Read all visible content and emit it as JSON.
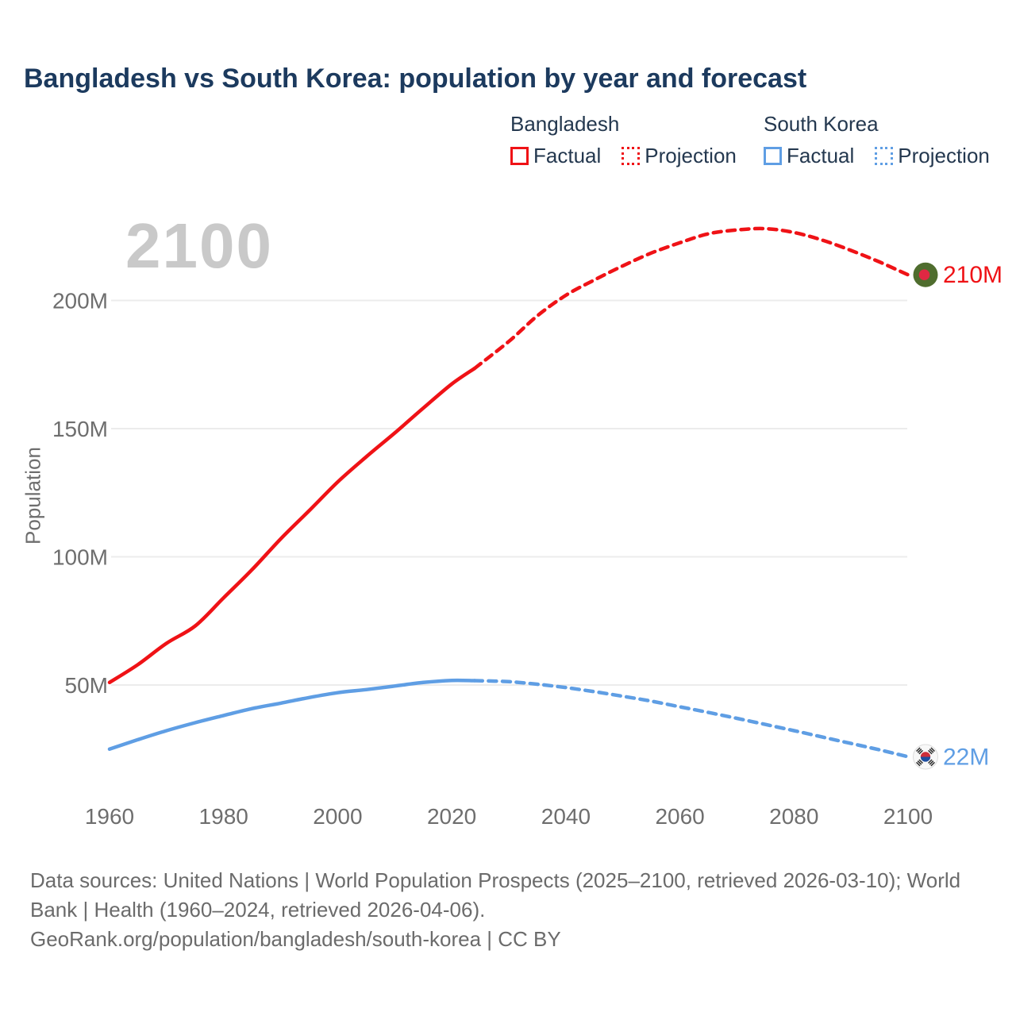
{
  "header": {
    "title": "Bangladesh vs South Korea: population by year and forecast"
  },
  "legend": {
    "groups": [
      {
        "name": "Bangladesh",
        "color": "#ef1216",
        "items": [
          {
            "label": "Factual",
            "style": "solid"
          },
          {
            "label": "Projection",
            "style": "dotted"
          }
        ]
      },
      {
        "name": "South Korea",
        "color": "#5f9ee4",
        "items": [
          {
            "label": "Factual",
            "style": "solid"
          },
          {
            "label": "Projection",
            "style": "dotted"
          }
        ]
      }
    ]
  },
  "watermark": "2100",
  "chart_data": {
    "type": "line",
    "title": "Bangladesh vs South Korea: population by year and forecast",
    "ylabel": "Population",
    "units": "millions",
    "xlim": [
      1960,
      2100
    ],
    "ylim": [
      0,
      240
    ],
    "grid": "horizontal-only",
    "legend_position": "top-right",
    "x_ticks": [
      1960,
      1980,
      2000,
      2020,
      2040,
      2060,
      2080,
      2100
    ],
    "y_ticks": [
      {
        "value": 50,
        "label": "50M"
      },
      {
        "value": 100,
        "label": "100M"
      },
      {
        "value": 150,
        "label": "150M"
      },
      {
        "value": 200,
        "label": "200M"
      }
    ],
    "series": [
      {
        "name": "Bangladesh Factual",
        "style": "solid",
        "color": "#ef1216",
        "points": [
          [
            1960,
            51
          ],
          [
            1965,
            58
          ],
          [
            1970,
            66.3
          ],
          [
            1975,
            73
          ],
          [
            1980,
            84
          ],
          [
            1985,
            95
          ],
          [
            1990,
            107
          ],
          [
            1995,
            118
          ],
          [
            2000,
            129.2
          ],
          [
            2005,
            139
          ],
          [
            2010,
            148.3
          ],
          [
            2015,
            158
          ],
          [
            2020,
            167.4
          ],
          [
            2024,
            173.5
          ]
        ]
      },
      {
        "name": "Bangladesh Projection",
        "style": "dotted",
        "color": "#ef1216",
        "points": [
          [
            2024,
            173.5
          ],
          [
            2030,
            184
          ],
          [
            2035,
            194
          ],
          [
            2040,
            202
          ],
          [
            2045,
            208
          ],
          [
            2050,
            213.5
          ],
          [
            2055,
            218.5
          ],
          [
            2060,
            222.5
          ],
          [
            2065,
            226
          ],
          [
            2070,
            227.5
          ],
          [
            2075,
            228
          ],
          [
            2080,
            226.5
          ],
          [
            2085,
            223.5
          ],
          [
            2090,
            219.5
          ],
          [
            2095,
            215
          ],
          [
            2100,
            210
          ]
        ]
      },
      {
        "name": "South Korea Factual",
        "style": "solid",
        "color": "#5f9ee4",
        "points": [
          [
            1960,
            25
          ],
          [
            1965,
            28.7
          ],
          [
            1970,
            32.2
          ],
          [
            1975,
            35.3
          ],
          [
            1980,
            38.1
          ],
          [
            1985,
            40.8
          ],
          [
            1990,
            42.9
          ],
          [
            1995,
            45.1
          ],
          [
            2000,
            47
          ],
          [
            2005,
            48.2
          ],
          [
            2010,
            49.6
          ],
          [
            2015,
            51
          ],
          [
            2020,
            51.8
          ],
          [
            2024,
            51.7
          ]
        ]
      },
      {
        "name": "South Korea Projection",
        "style": "dotted",
        "color": "#5f9ee4",
        "points": [
          [
            2024,
            51.7
          ],
          [
            2030,
            51.3
          ],
          [
            2035,
            50.3
          ],
          [
            2040,
            49
          ],
          [
            2045,
            47.4
          ],
          [
            2050,
            45.6
          ],
          [
            2055,
            43.7
          ],
          [
            2060,
            41.5
          ],
          [
            2065,
            39.3
          ],
          [
            2070,
            37
          ],
          [
            2075,
            34.6
          ],
          [
            2080,
            32.2
          ],
          [
            2085,
            29.7
          ],
          [
            2090,
            27.2
          ],
          [
            2095,
            24.7
          ],
          [
            2100,
            22
          ]
        ]
      }
    ],
    "end_markers": [
      {
        "country": "Bangladesh",
        "flag": "bangladesh",
        "label": "210M",
        "value": 210,
        "color": "#ef1216"
      },
      {
        "country": "South Korea",
        "flag": "south-korea",
        "label": "22M",
        "value": 22,
        "color": "#5f9ee4"
      }
    ]
  },
  "icons": {
    "bangladesh_flag": {
      "field": "#4f6d2e",
      "disc": "#e02843"
    },
    "south_korea_flag": {
      "field": "#f8f8f8",
      "border": "#dcdcdc",
      "taegeuk_red": "#cd2e3a",
      "taegeuk_blue": "#1d4ea0",
      "trigram": "#2b2b2b"
    }
  },
  "footer": {
    "lines": [
      "Data sources: United Nations | World Population Prospects (2025–2100, retrieved 2026-03-10); World",
      "Bank | Health (1960–2024, retrieved 2026-04-06).",
      "GeoRank.org/population/bangladesh/south-korea | CC BY"
    ]
  }
}
